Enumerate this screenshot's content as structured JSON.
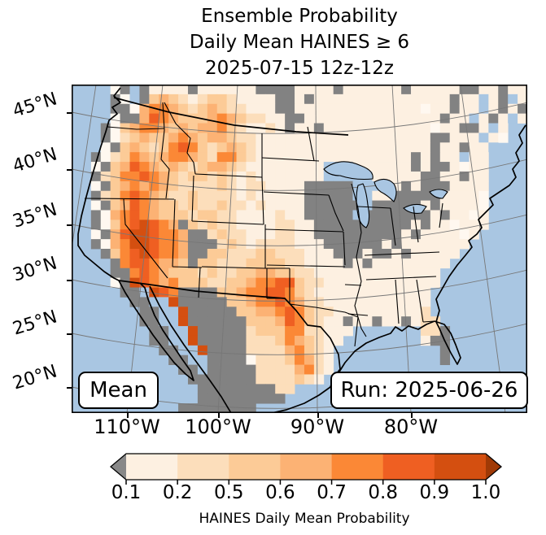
{
  "title": {
    "line1": "Ensemble Probability",
    "line2": "Daily Mean HAINES ≥ 6",
    "line3": "2025-07-15 12z-12z"
  },
  "map": {
    "mean_label": "Mean",
    "run_label": "Run: 2025-06-26",
    "y_ticks": [
      "45°N",
      "40°N",
      "35°N",
      "30°N",
      "25°N",
      "20°N"
    ],
    "x_ticks": [
      "110°W",
      "100°W",
      "90°W",
      "80°W"
    ],
    "ocean_color": "#a9c6e2",
    "grid": {
      "palette": {
        "L": "#a9c6e2",
        "w": "#fff8f0",
        "a": "#fdf0e1",
        "b": "#fcdebb",
        "c": "#fccb97",
        "d": "#fcb274",
        "e": "#fb8836",
        "f": "#ef5f22",
        "g": "#d44f10",
        "G": "#828282"
      },
      "rows": [
        "....wGLGaaaaGaaaaaaGGGGaaaaGaaaaaaGaaaaaGGaaGaa",
        "....GwLGcdcbabccbaaaaGGaGaaaaaaaaaaaaaaGaaLaGLa",
        "....GGwdeedcbcdcbbaaaGGaaaaaaaaaaaaawaaGaaLaGaG",
        "....wGGdfedcccdedcbbaaGGaaaaaaaaaaaaaaGaaLaGaLa",
        "...GwcdeedcdcddecbaabaGaaGaaaaaaaaaaawaaGGaLa..",
        "...GwbcdccdedcddcbbaaaaaaaaaaaaaaaaaaGGaaaLaw..",
        "...wGcdcbcefecbcdcbaaaaaaaaaaaaaaaaaaGaaGaaL...",
        "..GwbcedcdeedcbeecbaaaaaaaaaaaaaaaaGaGaaLaa...",
        "..wGcdfedcdcbcddcbaaaaaaaaLLLaaaaaaGaGGawaa....",
        "..GbceefedcbccbcbabaaaaaaaLLLLLaaaaaGGaaGaa....",
        "..wGcdededcbbbbcbabbaaaaGGGGGLLLLaGaGGGaaaa....",
        "..Gbcefedcbbcbbbbabaaaaa GGGGGLLaaGGGGGaaaaw....",
        "..wGcdfedccbcbbcbbabaaaaGGGGGGLGGGGGaGaaaaw....",
        "..GwdefedcccbccbbaaaabaaGGGGGLGGGGGGGaGaawa....",
        "..GwcefgfedGcbcbbaaaabbaaGGGGGGGGGGaGaawaaa....",
        "..wGdfggfeedGGbcbbaaabbaaGGGGGGGGGaGaaaawa.....",
        "..GwdeggfeedGGGbcbabbbbaaaGGGGGGaGaaaaaaa......",
        "...GcefgfeedGGccbbbccbbbaaaGGGaGGaGaaaaa.......",
        "....GeffeddcGccbbbccccbbaaaaGaGaaaaaaaa........",
        "....GGefedcccbcbbccddccbbaaaaaaaaaaaaa.........",
        "....wGgfedecccbbccdeeffcbbaaaaaaaaaaaa.........",
        ".....GGLgfeGGGGccdeeffecbaaaaaaaaaaaa..........",
        "......GGLLgGGGGGccdeefedbbaaaaaaaaaaa..........",
        ".......GGLLgGGGGGccddefecbbaaaaaaaaab..........",
        ".......GGLLgGGGGGGcccdfecbaaGaaGaaGabb.........",
        "........GGLLgGGGGGbccceebbaaa.......bbG........",
        "........GGLLgGGGGGbbbcedcbaa........aGG........",
        ".........GGLLgGGGGbbbbdecba...........G........",
        "..........GGLLGGGGwbbbcedba...........G........",
        "...........GGLGGGGGbbbbdeba....................",
        "............GGGGGGGbbbbcba.....................",
        ".............GGGGGGGGbb........................",
        ".............GGGGGGGGG.........................",
        "...........GGGGGGGG............................"
      ]
    }
  },
  "colorbar": {
    "tick_labels": [
      "0.1",
      "0.2",
      "0.5",
      "0.6",
      "0.7",
      "0.8",
      "0.9",
      "1.0"
    ],
    "segment_colors": [
      "#fdf0e1",
      "#fcdebb",
      "#fccb97",
      "#fcb274",
      "#fb8836",
      "#ef5f22",
      "#d44f10"
    ],
    "under_color": "#888888",
    "over_color": "#a03a06",
    "caption": "HAINES Daily Mean Probability"
  },
  "chart_data": {
    "type": "heatmap",
    "title": "Ensemble Probability Daily Mean HAINES ≥ 6 2025-07-15 12z-12z",
    "x_ticks": [
      "110°W",
      "100°W",
      "90°W",
      "80°W"
    ],
    "y_ticks": [
      "45°N",
      "40°N",
      "35°N",
      "30°N",
      "25°N",
      "20°N"
    ],
    "legend_title": "HAINES Daily Mean Probability",
    "bins": [
      0.1,
      0.2,
      0.5,
      0.6,
      0.7,
      0.8,
      0.9,
      1.0
    ],
    "bin_colors": [
      "#fdf0e1",
      "#fcdebb",
      "#fccb97",
      "#fcb274",
      "#fb8836",
      "#ef5f22",
      "#d44f10"
    ],
    "no_data_color": "#828282",
    "annotations": [
      "Mean",
      "Run: 2025-06-26"
    ],
    "notes": "Grid rows in map.grid encode probability classes a<0.2 b<0.5 c<0.6 d<0.7 e<0.8 f<0.9 g<=1.0, G=gray masked, L=water"
  }
}
